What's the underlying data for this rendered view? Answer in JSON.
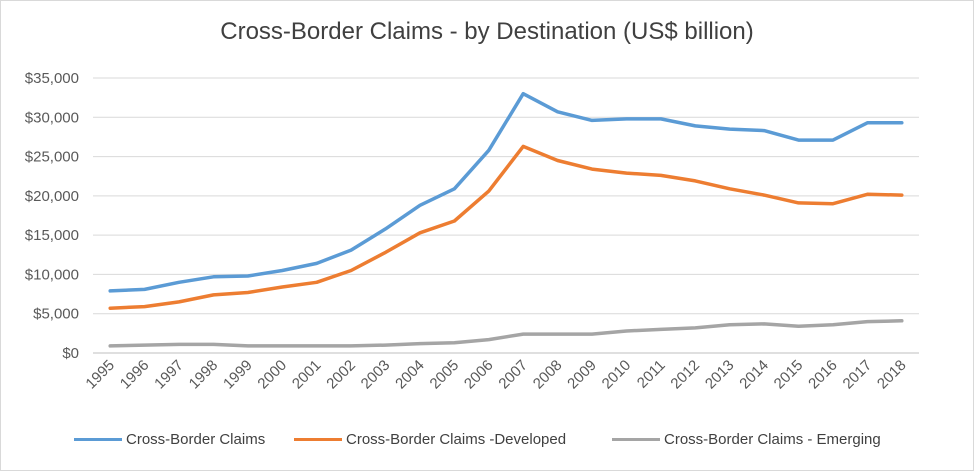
{
  "chart_data": {
    "type": "line",
    "title": "Cross-Border Claims - by Destination (US$ billion)",
    "xlabel": "",
    "ylabel": "",
    "categories": [
      "1995",
      "1996",
      "1997",
      "1998",
      "1999",
      "2000",
      "2001",
      "2002",
      "2003",
      "2004",
      "2005",
      "2006",
      "2007",
      "2008",
      "2009",
      "2010",
      "2011",
      "2012",
      "2013",
      "2014",
      "2015",
      "2016",
      "2017",
      "2018"
    ],
    "ylim": [
      0,
      35000
    ],
    "yticks": [
      0,
      5000,
      10000,
      15000,
      20000,
      25000,
      30000,
      35000
    ],
    "ytick_labels": [
      "$0",
      "$5,000",
      "$10,000",
      "$15,000",
      "$20,000",
      "$25,000",
      "$30,000",
      "$35,000"
    ],
    "grid": true,
    "legend_position": "bottom",
    "series": [
      {
        "name": "Cross-Border Claims",
        "color": "#5b9bd5",
        "values": [
          7900,
          8100,
          9000,
          9700,
          9800,
          10500,
          11400,
          13100,
          15800,
          18800,
          20900,
          25800,
          33000,
          30700,
          29600,
          29800,
          29800,
          28900,
          28500,
          28300,
          27100,
          27100,
          29300,
          29300
        ]
      },
      {
        "name": "Cross-Border Claims -Developed",
        "color": "#ed7d31",
        "values": [
          5700,
          5900,
          6500,
          7400,
          7700,
          8400,
          9000,
          10500,
          12800,
          15300,
          16800,
          20600,
          26300,
          24500,
          23400,
          22900,
          22600,
          21900,
          20900,
          20100,
          19100,
          19000,
          20200,
          20100
        ]
      },
      {
        "name": "Cross-Border Claims - Emerging",
        "color": "#a5a5a5",
        "values": [
          900,
          1000,
          1100,
          1100,
          900,
          900,
          900,
          900,
          1000,
          1200,
          1300,
          1700,
          2400,
          2400,
          2400,
          2800,
          3000,
          3200,
          3600,
          3700,
          3400,
          3600,
          4000,
          4100
        ]
      }
    ]
  }
}
